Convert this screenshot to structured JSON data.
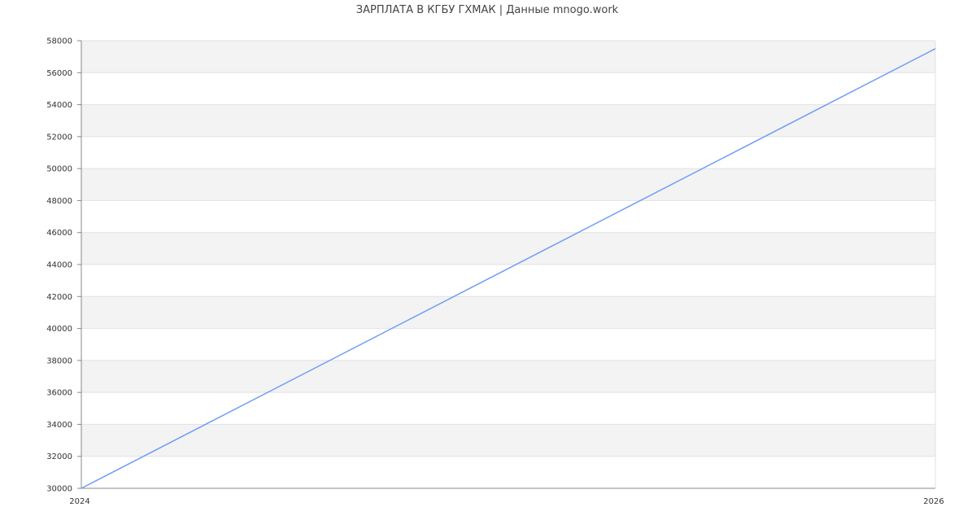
{
  "chart_data": {
    "type": "line",
    "title": "ЗАРПЛАТА В КГБУ ГХМАК | Данные mnogo.work",
    "xlabel": "",
    "ylabel": "",
    "x_ticks": [
      "2024",
      "2026"
    ],
    "xlim": [
      2024,
      2026
    ],
    "ylim": [
      30000,
      58000
    ],
    "y_ticks": [
      30000,
      32000,
      34000,
      36000,
      38000,
      40000,
      42000,
      44000,
      46000,
      48000,
      50000,
      52000,
      54000,
      56000,
      58000
    ],
    "grid": true,
    "series": [
      {
        "color": "#6f9ef5",
        "points": [
          {
            "x": 2024,
            "y": 30000
          },
          {
            "x": 2026,
            "y": 57500
          }
        ]
      }
    ],
    "band_colors": [
      "#f3f3f3",
      "#ffffff"
    ]
  }
}
